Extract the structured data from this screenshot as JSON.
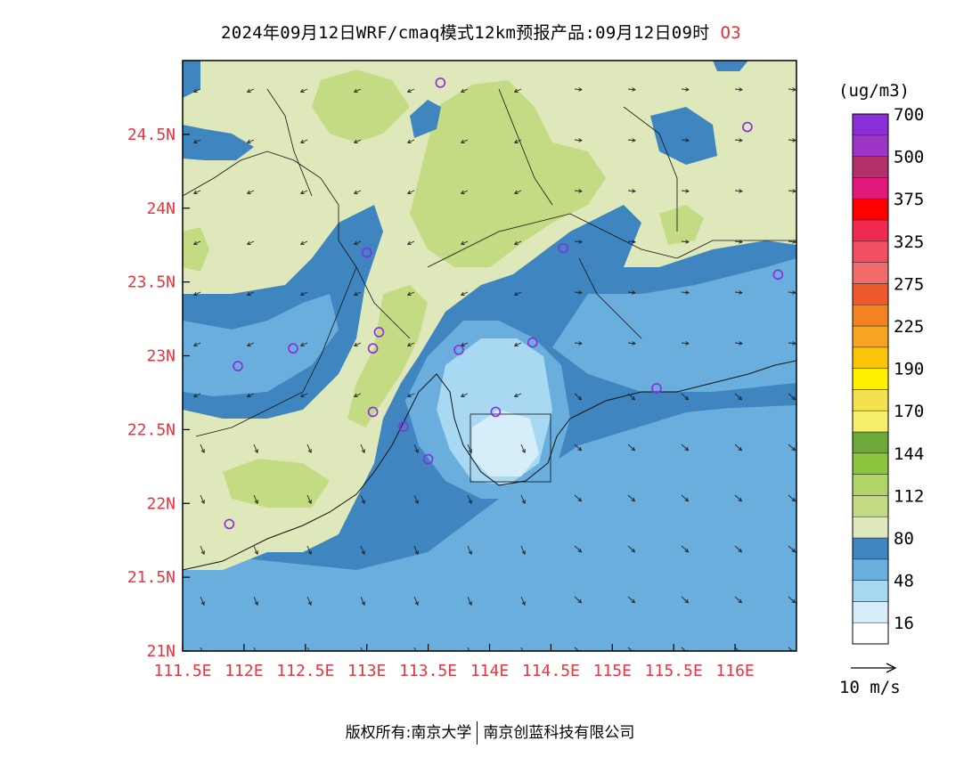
{
  "header": {
    "title": "2024年09月12日WRF/cmaq模式12km预报产品:09月12日09时",
    "species": "O3"
  },
  "footer": {
    "left": "版权所有:南京大学",
    "right": "南京创蓝科技有限公司"
  },
  "chart_data": {
    "type": "heatmap",
    "title": "2024年09月12日WRF/cmaq模式12km预报产品:09月12日09时 O3",
    "x_ticks": [
      "111.5E",
      "112E",
      "112.5E",
      "113E",
      "113.5E",
      "114E",
      "114.5E",
      "115E",
      "115.5E",
      "116E"
    ],
    "x_values": [
      111.5,
      112,
      112.5,
      113,
      113.5,
      114,
      114.5,
      115,
      115.5,
      116
    ],
    "y_ticks": [
      "21N",
      "21.5N",
      "22N",
      "22.5N",
      "23N",
      "23.5N",
      "24N",
      "24.5N"
    ],
    "y_values": [
      21,
      21.5,
      22,
      22.5,
      23,
      23.5,
      24,
      24.5
    ],
    "xlim": [
      111.5,
      116.5
    ],
    "ylim": [
      21,
      25
    ],
    "colorbar": {
      "unit": "(ug/m3)",
      "labels": [
        "16",
        "48",
        "80",
        "112",
        "144",
        "170",
        "190",
        "225",
        "275",
        "325",
        "375",
        "500",
        "700"
      ],
      "colors": [
        "#ffffff",
        "#d6eef9",
        "#a8d8f2",
        "#6aaedd",
        "#3f86c0",
        "#dfe8bb",
        "#c3dc84",
        "#b1d468",
        "#8cc63f",
        "#6fa83a",
        "#f4f06a",
        "#f3e14e",
        "#fff200",
        "#fdc50a",
        "#f8a323",
        "#f58220",
        "#ee5a2b",
        "#f26b6b",
        "#f25062",
        "#f0294f",
        "#ff0000",
        "#e2187a",
        "#b1306a",
        "#9b36c9",
        "#8a2ed8"
      ]
    },
    "wind_reference": "10 m/s",
    "stations": [
      {
        "lon": 113.6,
        "lat": 24.85
      },
      {
        "lon": 116.1,
        "lat": 24.55
      },
      {
        "lon": 114.6,
        "lat": 23.73
      },
      {
        "lon": 113.0,
        "lat": 23.7
      },
      {
        "lon": 116.35,
        "lat": 23.55
      },
      {
        "lon": 113.1,
        "lat": 23.16
      },
      {
        "lon": 113.05,
        "lat": 23.05
      },
      {
        "lon": 112.4,
        "lat": 23.05
      },
      {
        "lon": 113.75,
        "lat": 23.04
      },
      {
        "lon": 114.35,
        "lat": 23.09
      },
      {
        "lon": 111.95,
        "lat": 22.93
      },
      {
        "lon": 115.36,
        "lat": 22.78
      },
      {
        "lon": 113.05,
        "lat": 22.62
      },
      {
        "lon": 114.05,
        "lat": 22.62
      },
      {
        "lon": 113.3,
        "lat": 22.52
      },
      {
        "lon": 113.5,
        "lat": 22.3
      },
      {
        "lon": 111.88,
        "lat": 21.86
      }
    ]
  }
}
